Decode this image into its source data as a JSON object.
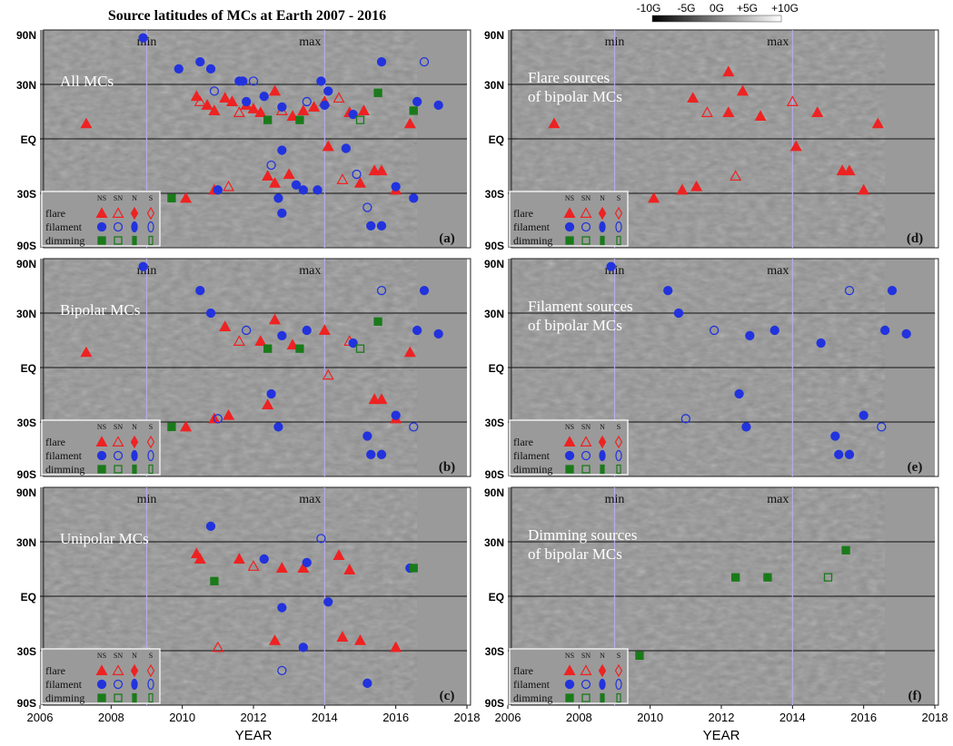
{
  "figure": {
    "title": "Source latitudes of MCs at Earth 2007 - 2016",
    "colorbar": {
      "labels": [
        "-10G",
        "-5G",
        "0G",
        "+5G",
        "+10G"
      ],
      "colors": [
        "#000000",
        "#ffffff"
      ]
    },
    "x_axis": {
      "label": "YEAR",
      "ticks": [
        "2006",
        "2008",
        "2010",
        "2012",
        "2014",
        "2016",
        "2018"
      ]
    },
    "y_axis": {
      "ticks": [
        "90N",
        "30N",
        "EQ",
        "30S",
        "90S"
      ]
    },
    "markers": {
      "min_label": "min",
      "max_label": "max"
    },
    "legend": {
      "columns": [
        "NS",
        "SN",
        "N",
        "S"
      ],
      "rows": [
        "flare",
        "filament",
        "dimming"
      ]
    },
    "colors": {
      "flare": "#ee2222",
      "filament": "#2233dd",
      "dimming": "#1a7a1a",
      "grid": "#111111",
      "cycle_line": "#b9a8ee"
    }
  },
  "chart_data": [
    {
      "type": "scatter",
      "panel": "(a)",
      "title": "All MCs",
      "xlim": [
        2006,
        2018
      ],
      "ylabel_ticks": [
        "90N",
        "30N",
        "EQ",
        "30S",
        "90S"
      ],
      "series": [
        {
          "name": "flare",
          "points": [
            [
              2007.3,
              8
            ],
            [
              2010.1,
              -33
            ],
            [
              2010.4,
              23
            ],
            [
              2010.5,
              20
            ],
            [
              2010.7,
              18
            ],
            [
              2010.9,
              15
            ],
            [
              2011.2,
              22
            ],
            [
              2011.4,
              20
            ],
            [
              2011.6,
              14
            ],
            [
              2011.8,
              18
            ],
            [
              2012.0,
              16
            ],
            [
              2012.2,
              14
            ],
            [
              2012.6,
              26
            ],
            [
              2012.8,
              15
            ],
            [
              2013.1,
              12
            ],
            [
              2013.4,
              15
            ],
            [
              2013.7,
              17
            ],
            [
              2014.0,
              20
            ],
            [
              2014.4,
              22
            ],
            [
              2014.7,
              14
            ],
            [
              2015.1,
              15
            ],
            [
              2016.4,
              8
            ],
            [
              2010.9,
              -28
            ],
            [
              2011.3,
              -26
            ],
            [
              2012.4,
              -20
            ],
            [
              2012.6,
              -24
            ],
            [
              2013.0,
              -19
            ],
            [
              2014.1,
              -4
            ],
            [
              2014.5,
              -22
            ],
            [
              2015.0,
              -24
            ],
            [
              2015.4,
              -17
            ],
            [
              2015.6,
              -17
            ],
            [
              2016.0,
              -28
            ]
          ]
        },
        {
          "name": "filament",
          "points": [
            [
              2008.9,
              68
            ],
            [
              2010.5,
              45
            ],
            [
              2010.8,
              40
            ],
            [
              2010.9,
              26
            ],
            [
              2011.6,
              32
            ],
            [
              2011.8,
              20
            ],
            [
              2012.3,
              23
            ],
            [
              2012.8,
              17
            ],
            [
              2013.5,
              20
            ],
            [
              2014.0,
              18
            ],
            [
              2014.8,
              13
            ],
            [
              2016.6,
              20
            ],
            [
              2011.0,
              -28
            ],
            [
              2012.5,
              -14
            ],
            [
              2012.7,
              -33
            ],
            [
              2013.2,
              -25
            ],
            [
              2013.8,
              -28
            ],
            [
              2014.6,
              -5
            ],
            [
              2015.2,
              -39
            ],
            [
              2012.8,
              -43
            ],
            [
              2016.0,
              -26
            ],
            [
              2009.9,
              40
            ],
            [
              2011.7,
              32
            ],
            [
              2012.0,
              32
            ],
            [
              2013.9,
              32
            ],
            [
              2014.1,
              26
            ],
            [
              2012.8,
              -6
            ],
            [
              2013.4,
              -28
            ],
            [
              2014.9,
              -19
            ],
            [
              2015.3,
              -53
            ],
            [
              2015.6,
              -53
            ],
            [
              2016.5,
              -33
            ],
            [
              2015.6,
              45
            ],
            [
              2016.8,
              45
            ],
            [
              2017.2,
              18
            ]
          ]
        },
        {
          "name": "dimming",
          "points": [
            [
              2009.7,
              -33
            ],
            [
              2012.4,
              10
            ],
            [
              2013.3,
              10
            ],
            [
              2015.0,
              10
            ],
            [
              2015.5,
              25
            ],
            [
              2016.5,
              15
            ]
          ]
        }
      ]
    },
    {
      "type": "scatter",
      "panel": "(b)",
      "title": "Bipolar MCs",
      "xlim": [
        2006,
        2018
      ],
      "series": [
        {
          "name": "flare",
          "points": [
            [
              2007.3,
              8
            ],
            [
              2010.1,
              -33
            ],
            [
              2011.2,
              22
            ],
            [
              2011.6,
              14
            ],
            [
              2012.2,
              14
            ],
            [
              2012.6,
              26
            ],
            [
              2013.1,
              12
            ],
            [
              2014.0,
              20
            ],
            [
              2014.7,
              14
            ],
            [
              2016.4,
              8
            ],
            [
              2010.9,
              -28
            ],
            [
              2011.3,
              -26
            ],
            [
              2012.4,
              -20
            ],
            [
              2014.1,
              -4
            ],
            [
              2015.4,
              -17
            ],
            [
              2015.6,
              -17
            ],
            [
              2016.0,
              -28
            ]
          ]
        },
        {
          "name": "filament",
          "points": [
            [
              2008.9,
              68
            ],
            [
              2010.5,
              45
            ],
            [
              2010.8,
              30
            ],
            [
              2011.8,
              20
            ],
            [
              2012.8,
              17
            ],
            [
              2013.5,
              20
            ],
            [
              2014.8,
              13
            ],
            [
              2016.6,
              20
            ],
            [
              2011.0,
              -28
            ],
            [
              2012.5,
              -14
            ],
            [
              2012.7,
              -33
            ],
            [
              2015.2,
              -39
            ],
            [
              2016.0,
              -26
            ],
            [
              2015.6,
              45
            ],
            [
              2016.8,
              45
            ],
            [
              2017.2,
              18
            ],
            [
              2015.3,
              -53
            ],
            [
              2015.6,
              -53
            ],
            [
              2016.5,
              -33
            ]
          ]
        },
        {
          "name": "dimming",
          "points": [
            [
              2009.7,
              -33
            ],
            [
              2012.4,
              10
            ],
            [
              2013.3,
              10
            ],
            [
              2015.0,
              10
            ],
            [
              2015.5,
              25
            ]
          ]
        }
      ]
    },
    {
      "type": "scatter",
      "panel": "(c)",
      "title": "Unipolar MCs",
      "xlim": [
        2006,
        2018
      ],
      "series": [
        {
          "name": "flare",
          "points": [
            [
              2010.4,
              23
            ],
            [
              2010.5,
              20
            ],
            [
              2011.6,
              20
            ],
            [
              2012.0,
              16
            ],
            [
              2012.8,
              15
            ],
            [
              2013.4,
              15
            ],
            [
              2014.4,
              22
            ],
            [
              2014.7,
              14
            ],
            [
              2011.0,
              -28
            ],
            [
              2012.6,
              -24
            ],
            [
              2014.5,
              -22
            ],
            [
              2015.0,
              -24
            ],
            [
              2016.0,
              -28
            ]
          ]
        },
        {
          "name": "filament",
          "points": [
            [
              2010.8,
              40
            ],
            [
              2012.3,
              20
            ],
            [
              2013.5,
              18
            ],
            [
              2013.9,
              32
            ],
            [
              2016.4,
              15
            ],
            [
              2012.8,
              -6
            ],
            [
              2013.4,
              -28
            ],
            [
              2014.1,
              -3
            ],
            [
              2012.8,
              -43
            ],
            [
              2015.2,
              -53
            ]
          ]
        },
        {
          "name": "dimming",
          "points": [
            [
              2010.9,
              8
            ],
            [
              2016.5,
              15
            ]
          ]
        }
      ]
    },
    {
      "type": "scatter",
      "panel": "(d)",
      "title": "Flare sources of bipolar MCs",
      "xlim": [
        2006,
        2018
      ],
      "series": [
        {
          "name": "flare",
          "points": [
            [
              2007.3,
              8
            ],
            [
              2010.1,
              -33
            ],
            [
              2011.2,
              22
            ],
            [
              2011.6,
              14
            ],
            [
              2012.2,
              14
            ],
            [
              2012.2,
              38
            ],
            [
              2012.6,
              26
            ],
            [
              2013.1,
              12
            ],
            [
              2014.0,
              20
            ],
            [
              2014.7,
              14
            ],
            [
              2016.4,
              8
            ],
            [
              2010.9,
              -28
            ],
            [
              2011.3,
              -26
            ],
            [
              2012.4,
              -20
            ],
            [
              2014.1,
              -4
            ],
            [
              2015.4,
              -17
            ],
            [
              2015.6,
              -17
            ],
            [
              2016.0,
              -28
            ]
          ]
        }
      ]
    },
    {
      "type": "scatter",
      "panel": "(e)",
      "title": "Filament sources of bipolar MCs",
      "xlim": [
        2006,
        2018
      ],
      "series": [
        {
          "name": "filament",
          "points": [
            [
              2008.9,
              68
            ],
            [
              2010.5,
              45
            ],
            [
              2010.8,
              30
            ],
            [
              2011.8,
              20
            ],
            [
              2012.8,
              17
            ],
            [
              2013.5,
              20
            ],
            [
              2014.8,
              13
            ],
            [
              2016.6,
              20
            ],
            [
              2011.0,
              -28
            ],
            [
              2012.5,
              -14
            ],
            [
              2012.7,
              -33
            ],
            [
              2015.2,
              -39
            ],
            [
              2016.0,
              -26
            ],
            [
              2015.6,
              45
            ],
            [
              2016.8,
              45
            ],
            [
              2017.2,
              18
            ],
            [
              2015.3,
              -53
            ],
            [
              2015.6,
              -53
            ],
            [
              2016.5,
              -33
            ]
          ]
        }
      ]
    },
    {
      "type": "scatter",
      "panel": "(f)",
      "title": "Dimming sources of bipolar MCs",
      "xlim": [
        2006,
        2018
      ],
      "series": [
        {
          "name": "dimming",
          "points": [
            [
              2009.7,
              -33
            ],
            [
              2012.4,
              10
            ],
            [
              2013.3,
              10
            ],
            [
              2015.0,
              10
            ],
            [
              2015.5,
              25
            ]
          ]
        }
      ]
    }
  ]
}
